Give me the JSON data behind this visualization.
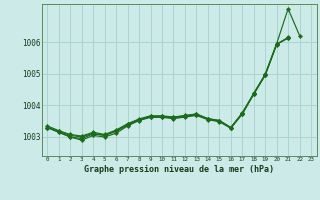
{
  "title": "Graphe pression niveau de la mer (hPa)",
  "xlim": [
    -0.5,
    23.5
  ],
  "ylim": [
    1002.4,
    1007.2
  ],
  "yticks": [
    1003,
    1004,
    1005,
    1006
  ],
  "xticks": [
    0,
    1,
    2,
    3,
    4,
    5,
    6,
    7,
    8,
    9,
    10,
    11,
    12,
    13,
    14,
    15,
    16,
    17,
    18,
    19,
    20,
    21,
    22,
    23
  ],
  "background_color": "#cceae8",
  "grid_color": "#aad4d0",
  "line_color": "#1a6b1a",
  "series": [
    [
      1003.3,
      1003.15,
      1003.0,
      1002.95,
      1003.1,
      1003.05,
      1003.2,
      1003.4,
      1003.55,
      1003.65,
      1003.65,
      1003.62,
      1003.67,
      1003.72,
      1003.58,
      1003.52,
      1003.3,
      1003.75,
      1004.38,
      1004.98,
      1005.95,
      1007.05,
      1006.2,
      null
    ],
    [
      1003.3,
      1003.15,
      1003.0,
      1002.9,
      1003.05,
      1003.0,
      1003.12,
      1003.35,
      1003.52,
      1003.62,
      1003.62,
      1003.58,
      1003.63,
      1003.68,
      1003.55,
      1003.48,
      1003.28,
      1003.72,
      1004.35,
      1004.95,
      1005.92,
      1006.15,
      null,
      null
    ],
    [
      1003.3,
      1003.18,
      1003.05,
      1003.0,
      1003.12,
      1003.05,
      1003.18,
      1003.38,
      1003.54,
      1003.64,
      1003.64,
      1003.6,
      1003.65,
      1003.7,
      1003.56,
      1003.5,
      1003.28,
      1003.74,
      1004.36,
      1004.96,
      1005.93,
      1006.12,
      null,
      null
    ],
    [
      1003.35,
      1003.2,
      1003.08,
      1003.03,
      1003.15,
      1003.08,
      1003.22,
      1003.42,
      1003.57,
      1003.67,
      1003.67,
      1003.63,
      1003.68,
      1003.73,
      1003.58,
      1003.52,
      1003.3,
      1003.76,
      1004.37,
      1004.97,
      1005.94,
      1006.13,
      null,
      null
    ]
  ]
}
